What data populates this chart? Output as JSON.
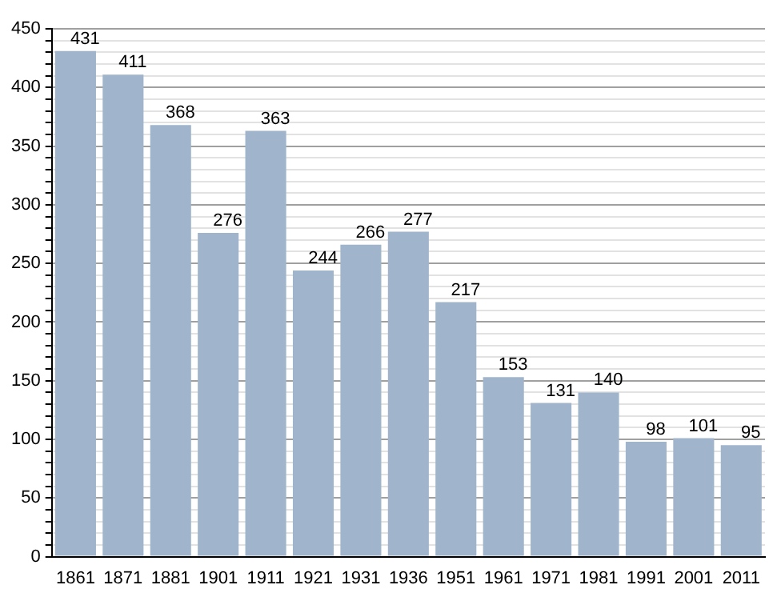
{
  "chart_data": {
    "type": "bar",
    "categories": [
      "1861",
      "1871",
      "1881",
      "1901",
      "1911",
      "1921",
      "1931",
      "1936",
      "1951",
      "1961",
      "1971",
      "1981",
      "1991",
      "2001",
      "2011"
    ],
    "values": [
      431,
      411,
      368,
      276,
      363,
      244,
      266,
      277,
      217,
      153,
      131,
      140,
      98,
      101,
      95
    ],
    "color": "#a0b5cc",
    "ylim": [
      0,
      450
    ],
    "yticks": [
      0,
      {
        "value": 10,
        "label": null
      },
      {
        "value": 20,
        "label": null
      },
      {
        "value": 30,
        "label": null
      },
      {
        "value": 40,
        "label": null
      },
      50,
      {
        "value": 60,
        "label": null
      },
      {
        "value": 70,
        "label": null
      },
      {
        "value": 80,
        "label": null
      },
      {
        "value": 90,
        "label": null
      },
      100,
      {
        "value": 110,
        "label": null
      },
      {
        "value": 120,
        "label": null
      },
      {
        "value": 130,
        "label": null
      },
      {
        "value": 140,
        "label": null
      },
      150,
      {
        "value": 160,
        "label": null
      },
      {
        "value": 170,
        "label": null
      },
      {
        "value": 180,
        "label": null
      },
      {
        "value": 190,
        "label": null
      },
      200,
      {
        "value": 210,
        "label": null
      },
      {
        "value": 220,
        "label": null
      },
      {
        "value": 230,
        "label": null
      },
      {
        "value": 240,
        "label": null
      },
      250,
      {
        "value": 260,
        "label": null
      },
      {
        "value": 270,
        "label": null
      },
      {
        "value": 280,
        "label": null
      },
      {
        "value": 290,
        "label": null
      },
      300,
      {
        "value": 310,
        "label": null
      },
      {
        "value": 320,
        "label": null
      },
      {
        "value": 330,
        "label": null
      },
      {
        "value": 340,
        "label": null
      },
      350,
      {
        "value": 360,
        "label": null
      },
      {
        "value": 370,
        "label": null
      },
      {
        "value": 380,
        "label": null
      },
      {
        "value": 390,
        "label": null
      },
      400,
      {
        "value": 410,
        "label": null
      },
      {
        "value": 420,
        "label": null
      },
      {
        "value": 430,
        "label": null
      },
      {
        "value": 440,
        "label": null
      },
      450
    ],
    "grid": "y",
    "data_labels": true
  }
}
